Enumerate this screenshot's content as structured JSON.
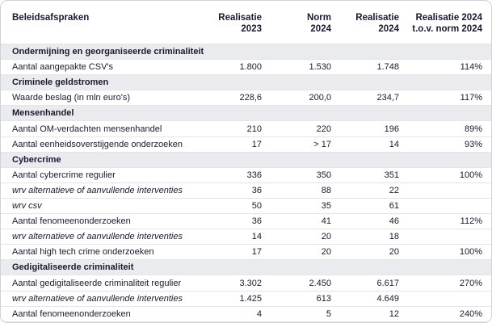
{
  "table": {
    "header": [
      [
        "Beleidsafspraken"
      ],
      [
        "Realisatie",
        "2023"
      ],
      [
        "Norm",
        "2024"
      ],
      [
        "Realisatie",
        "2024"
      ],
      [
        "Realisatie 2024",
        "t.o.v. norm 2024"
      ]
    ],
    "rows": [
      {
        "section": "Ondermijning en georganiseerde criminaliteit"
      },
      {
        "label": "Aantal aangepakte CSV's",
        "cells": [
          "1.800",
          "1.530",
          "1.748",
          "114%"
        ]
      },
      {
        "section": "Criminele geldstromen"
      },
      {
        "label": "Waarde beslag (in mln euro's)",
        "cells": [
          "228,6",
          "200,0",
          "234,7",
          "117%"
        ]
      },
      {
        "section": "Mensenhandel"
      },
      {
        "label": "Aantal OM-verdachten mensenhandel",
        "cells": [
          "210",
          "220",
          "196",
          "89%"
        ]
      },
      {
        "label": "Aantal eenheidsoverstijgende onderzoeken",
        "cells": [
          "17",
          "> 17",
          "14",
          "93%"
        ]
      },
      {
        "section": "Cybercrime"
      },
      {
        "label": "Aantal cybercrime regulier",
        "cells": [
          "336",
          "350",
          "351",
          "100%"
        ]
      },
      {
        "label": "wrv alternatieve of aanvullende interventies",
        "italic": true,
        "cells": [
          "36",
          "88",
          "22",
          null
        ]
      },
      {
        "label": "wrv csv",
        "italic": true,
        "cells": [
          "50",
          "35",
          "61",
          null
        ]
      },
      {
        "label": "Aantal fenomeenonderzoeken",
        "cells": [
          "36",
          "41",
          "46",
          "112%"
        ]
      },
      {
        "label": "wrv alternatieve of aanvullende interventies",
        "italic": true,
        "cells": [
          "14",
          "20",
          "18",
          null
        ]
      },
      {
        "label": "Aantal high tech crime onderzoeken",
        "cells": [
          "17",
          "20",
          "20",
          "100%"
        ]
      },
      {
        "section": "Gedigitaliseerde criminaliteit"
      },
      {
        "label": "Aantal gedigitaliseerde criminaliteit regulier",
        "cells": [
          "3.302",
          "2.450",
          "6.617",
          "270%"
        ]
      },
      {
        "label": "wrv alternatieve of aanvullende interventies",
        "italic": true,
        "cells": [
          "1.425",
          "613",
          "4.649",
          null
        ]
      },
      {
        "label": "Aantal fenomeenonderzoeken",
        "cells": [
          "4",
          "5",
          "12",
          "240%"
        ]
      }
    ]
  }
}
